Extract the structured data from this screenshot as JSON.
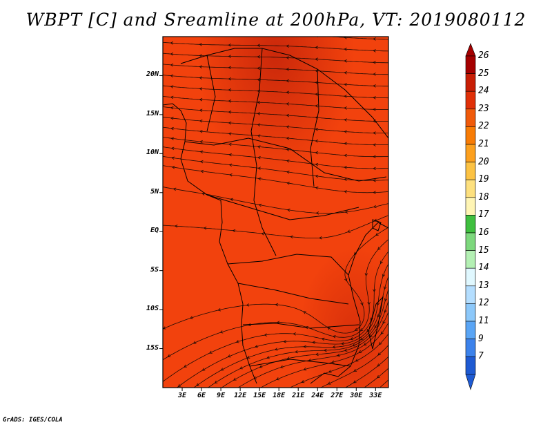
{
  "title": "WBPT [C] and Sreamline at 200hPa, VT: 2019080112",
  "footer": "GrADS: IGES/COLA",
  "map": {
    "lon_range": [
      0,
      35
    ],
    "lat_range": [
      -20,
      25
    ],
    "lat_ticks": [
      {
        "value": 20,
        "label": "20N"
      },
      {
        "value": 15,
        "label": "15N"
      },
      {
        "value": 10,
        "label": "10N"
      },
      {
        "value": 5,
        "label": "5N"
      },
      {
        "value": 0,
        "label": "EQ"
      },
      {
        "value": -5,
        "label": "5S"
      },
      {
        "value": -10,
        "label": "10S"
      },
      {
        "value": -15,
        "label": "15S"
      }
    ],
    "lon_ticks": [
      {
        "value": 3,
        "label": "3E"
      },
      {
        "value": 6,
        "label": "6E"
      },
      {
        "value": 9,
        "label": "9E"
      },
      {
        "value": 12,
        "label": "12E"
      },
      {
        "value": 15,
        "label": "15E"
      },
      {
        "value": 18,
        "label": "18E"
      },
      {
        "value": 21,
        "label": "21E"
      },
      {
        "value": 24,
        "label": "24E"
      },
      {
        "value": 27,
        "label": "27E"
      },
      {
        "value": 30,
        "label": "30E"
      },
      {
        "value": 33,
        "label": "33E"
      }
    ],
    "fill_colors": {
      "base": "#f2420d",
      "dark": "#d42a0a"
    }
  },
  "colorbar": {
    "levels": [
      {
        "label": "26",
        "color": "#a50000"
      },
      {
        "label": "25",
        "color": "#c81e05"
      },
      {
        "label": "24",
        "color": "#e03008"
      },
      {
        "label": "23",
        "color": "#f05a0a"
      },
      {
        "label": "22",
        "color": "#f87c05"
      },
      {
        "label": "21",
        "color": "#fca01e"
      },
      {
        "label": "20",
        "color": "#fcc243"
      },
      {
        "label": "19",
        "color": "#fde07e"
      },
      {
        "label": "18",
        "color": "#fff5b4"
      },
      {
        "label": "17",
        "color": "#3fbf3f"
      },
      {
        "label": "16",
        "color": "#7dd87d"
      },
      {
        "label": "15",
        "color": "#b4f0b4"
      },
      {
        "label": "14",
        "color": "#e0f8ff"
      },
      {
        "label": "13",
        "color": "#b4deff"
      },
      {
        "label": "12",
        "color": "#8cc8fa"
      },
      {
        "label": "11",
        "color": "#5aa5f5"
      },
      {
        "label": "9",
        "color": "#3c82eb"
      },
      {
        "label": "7",
        "color": "#1e5ad2"
      }
    ],
    "top_arrow_color": "#a50000",
    "bottom_arrow_color": "#1e5ad2"
  }
}
